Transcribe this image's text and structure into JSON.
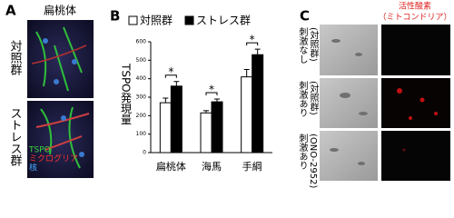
{
  "panel_a": {
    "label": "A",
    "title": "扁桃体",
    "rows": [
      "対照群",
      "ストレス群"
    ],
    "stain_legend": [
      {
        "text": "TSPO",
        "color": "#3cd63c"
      },
      {
        "text": "ミクログリア",
        "color": "#ff3030"
      },
      {
        "text": "核",
        "color": "#4aa8ff"
      }
    ]
  },
  "chart_data": {
    "type": "bar",
    "label": "B",
    "ylabel": "TSPO発現量",
    "categories": [
      "扁桃体",
      "海馬",
      "手綱"
    ],
    "series": [
      {
        "name": "対照群",
        "color": "#ffffff",
        "values": [
          270,
          215,
          410
        ],
        "errors": [
          25,
          12,
          40
        ]
      },
      {
        "name": "ストレス群",
        "color": "#000000",
        "values": [
          360,
          275,
          530
        ],
        "errors": [
          25,
          15,
          30
        ]
      }
    ],
    "significance": [
      "*",
      "*",
      "*"
    ],
    "ylim": [
      0,
      600
    ],
    "yticks": [
      0,
      100,
      200,
      300,
      400,
      500,
      600
    ]
  },
  "panel_c": {
    "label": "C",
    "title": [
      "活性酸素",
      "（ミトコンドリア）"
    ],
    "rows": [
      [
        "刺激なし",
        "(対照群)"
      ],
      [
        "刺激あり",
        "(対照群)"
      ],
      [
        "刺激あり",
        "(ONO-2952)"
      ]
    ]
  }
}
